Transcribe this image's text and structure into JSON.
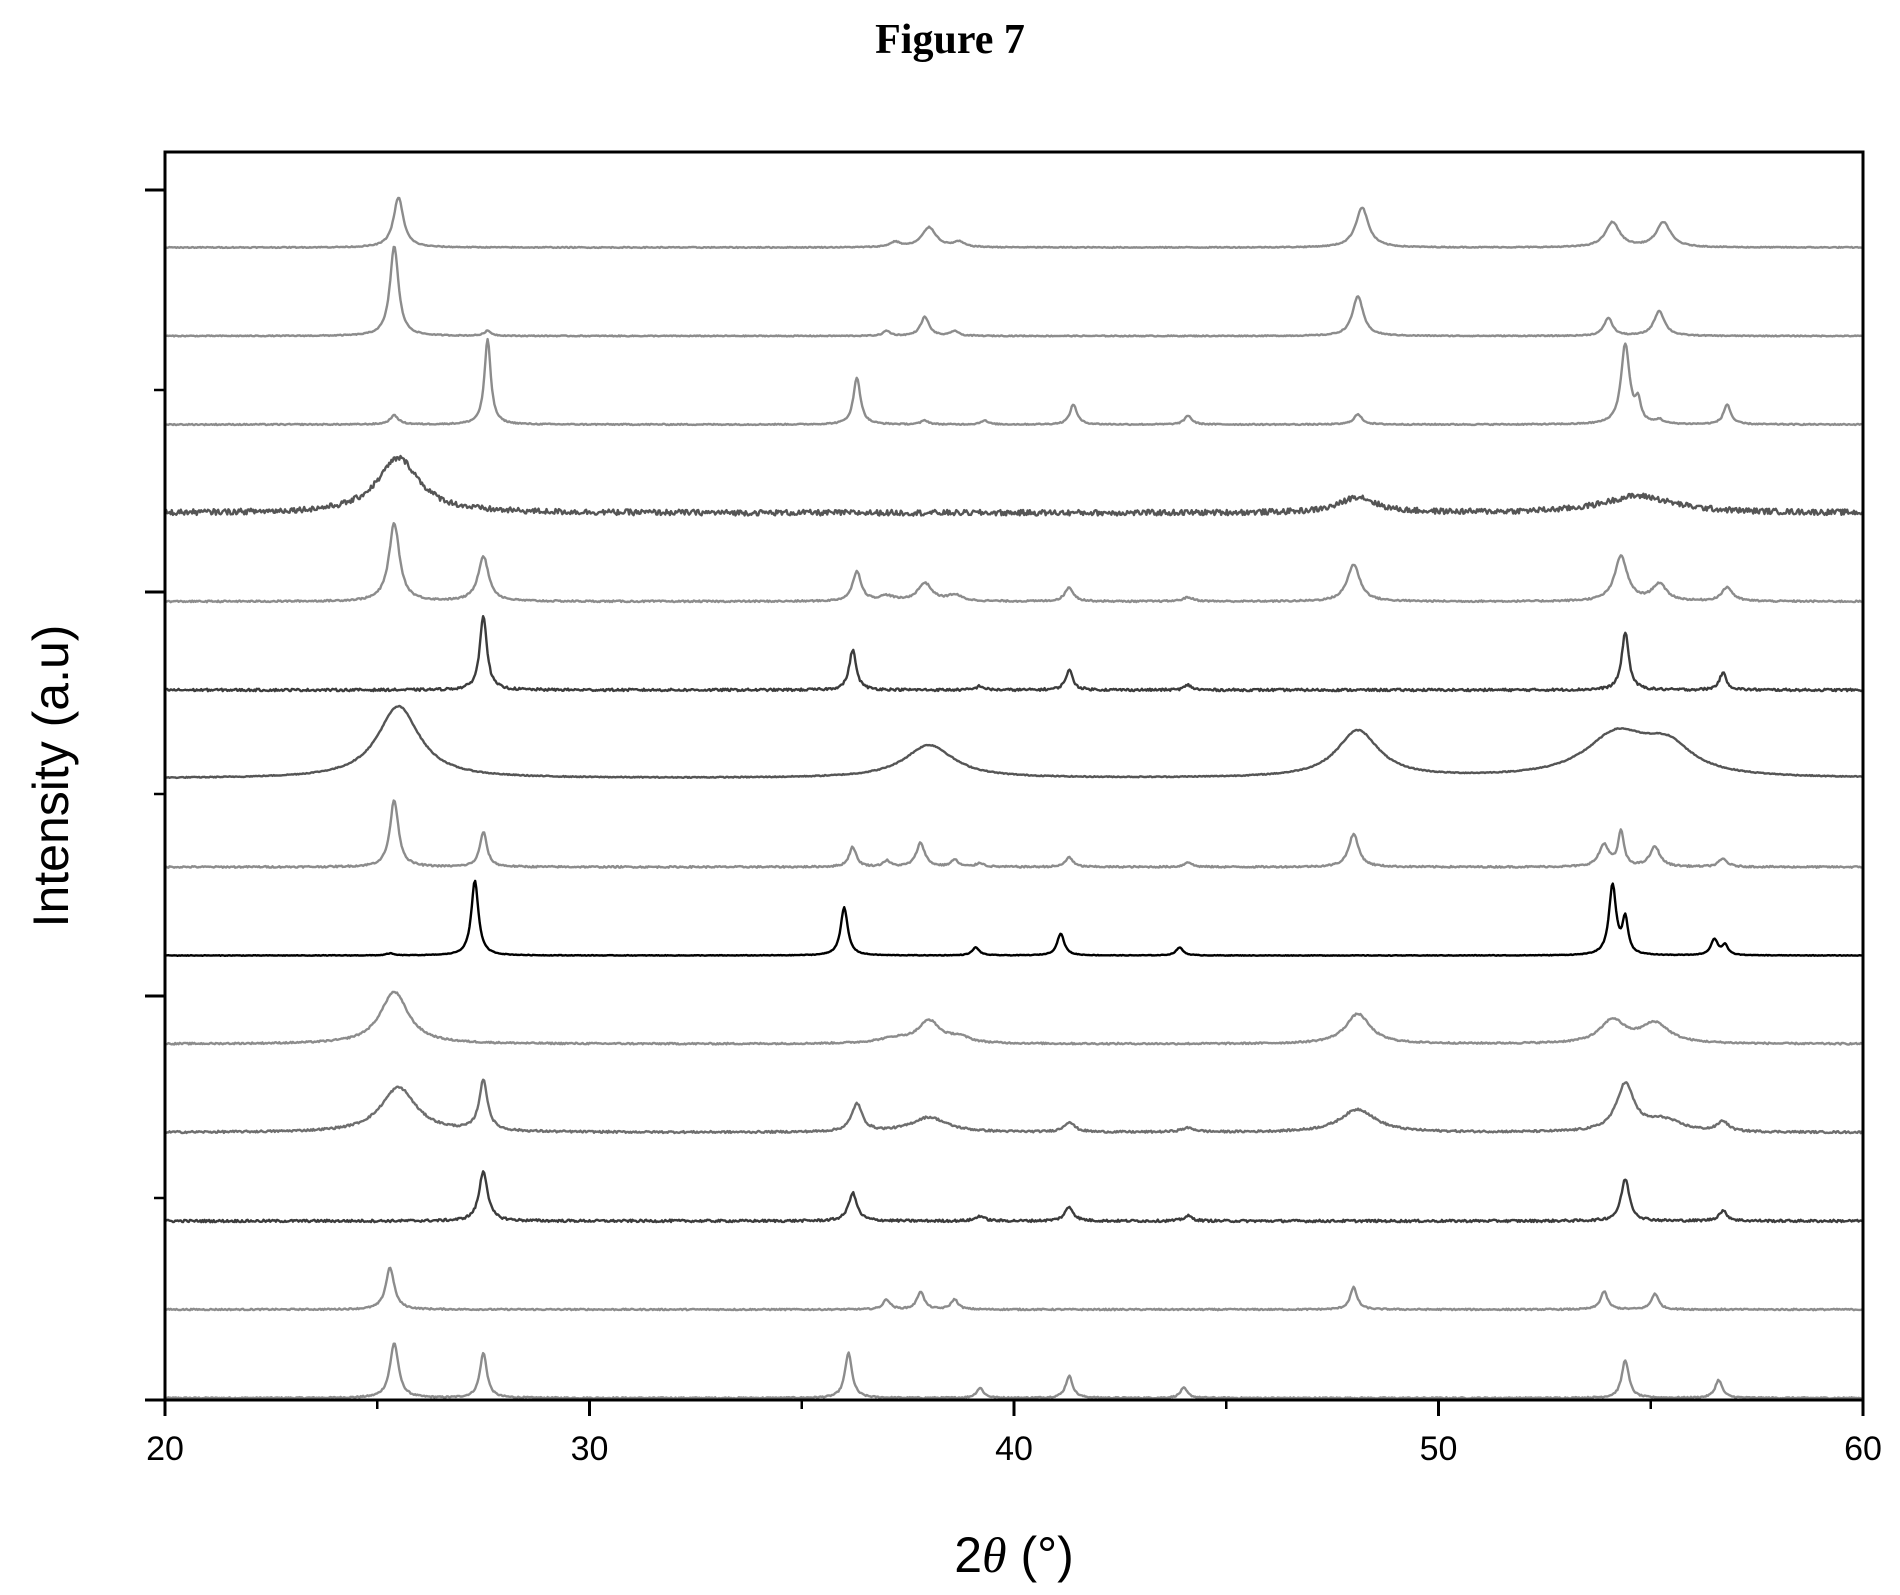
{
  "figure": {
    "title": "Figure 7"
  },
  "chart_data": {
    "type": "line",
    "title": "Figure 7",
    "xlabel": "2θ (°)",
    "xlabel_parts": {
      "prefix": "2",
      "symbol": "θ",
      "suffix": " (°)"
    },
    "ylabel": "Intensity (a.u)",
    "xlim": [
      20,
      60
    ],
    "x_ticks": [
      20,
      30,
      40,
      50,
      60
    ],
    "y_tick_labels": false,
    "grid": false,
    "legend": "none",
    "layout": "stacked-offset",
    "series": [
      {
        "color": "#8c8c8c",
        "baseline": 0,
        "noise": 0.7,
        "peaks": [
          [
            25.4,
            0.55,
            0.12
          ],
          [
            27.5,
            0.45,
            0.1
          ],
          [
            36.1,
            0.45,
            0.1
          ],
          [
            39.2,
            0.1,
            0.1
          ],
          [
            41.3,
            0.22,
            0.1
          ],
          [
            44.0,
            0.1,
            0.1
          ],
          [
            54.4,
            0.38,
            0.1
          ],
          [
            56.6,
            0.18,
            0.1
          ]
        ]
      },
      {
        "color": "#8c8c8c",
        "baseline": 1,
        "noise": 0.7,
        "peaks": [
          [
            25.3,
            0.42,
            0.12
          ],
          [
            37.0,
            0.1,
            0.1
          ],
          [
            37.8,
            0.18,
            0.1
          ],
          [
            38.6,
            0.1,
            0.1
          ],
          [
            48.0,
            0.22,
            0.1
          ],
          [
            53.9,
            0.18,
            0.1
          ],
          [
            55.1,
            0.16,
            0.1
          ]
        ]
      },
      {
        "color": "#3c3c3c",
        "baseline": 2,
        "noise": 1.2,
        "peaks": [
          [
            27.5,
            0.5,
            0.12
          ],
          [
            36.2,
            0.28,
            0.12
          ],
          [
            39.2,
            0.05,
            0.12
          ],
          [
            41.3,
            0.14,
            0.12
          ],
          [
            44.1,
            0.05,
            0.12
          ],
          [
            54.4,
            0.42,
            0.12
          ],
          [
            56.7,
            0.1,
            0.12
          ]
        ]
      },
      {
        "color": "#6e6e6e",
        "baseline": 3,
        "noise": 1.0,
        "peaks": [
          [
            25.5,
            0.45,
            0.5
          ],
          [
            27.5,
            0.5,
            0.12
          ],
          [
            36.3,
            0.28,
            0.15
          ],
          [
            38.0,
            0.15,
            0.5
          ],
          [
            41.3,
            0.1,
            0.15
          ],
          [
            44.1,
            0.04,
            0.2
          ],
          [
            48.1,
            0.23,
            0.5
          ],
          [
            54.4,
            0.47,
            0.25
          ],
          [
            55.3,
            0.12,
            0.5
          ],
          [
            56.7,
            0.1,
            0.15
          ]
        ]
      },
      {
        "color": "#8c8c8c",
        "baseline": 4,
        "noise": 0.8,
        "peaks": [
          [
            25.4,
            0.52,
            0.4
          ],
          [
            37.2,
            0.05,
            0.5
          ],
          [
            38.0,
            0.22,
            0.3
          ],
          [
            38.7,
            0.06,
            0.3
          ],
          [
            48.1,
            0.3,
            0.35
          ],
          [
            54.1,
            0.23,
            0.35
          ],
          [
            55.1,
            0.2,
            0.4
          ]
        ]
      },
      {
        "color": "#000000",
        "baseline": 5,
        "noise": 0.3,
        "peaks": [
          [
            25.3,
            0.02,
            0.1
          ],
          [
            27.3,
            0.75,
            0.1
          ],
          [
            36.0,
            0.48,
            0.1
          ],
          [
            39.1,
            0.08,
            0.1
          ],
          [
            41.1,
            0.22,
            0.1
          ],
          [
            43.9,
            0.08,
            0.1
          ],
          [
            54.1,
            0.7,
            0.1
          ],
          [
            54.4,
            0.35,
            0.08
          ],
          [
            56.5,
            0.16,
            0.1
          ],
          [
            56.75,
            0.1,
            0.08
          ]
        ]
      },
      {
        "color": "#8c8c8c",
        "baseline": 6,
        "noise": 0.8,
        "peaks": [
          [
            25.4,
            0.67,
            0.12
          ],
          [
            27.5,
            0.35,
            0.1
          ],
          [
            36.2,
            0.2,
            0.1
          ],
          [
            37.0,
            0.06,
            0.1
          ],
          [
            37.8,
            0.24,
            0.12
          ],
          [
            38.6,
            0.07,
            0.1
          ],
          [
            39.2,
            0.04,
            0.1
          ],
          [
            41.3,
            0.1,
            0.1
          ],
          [
            44.1,
            0.05,
            0.1
          ],
          [
            48.0,
            0.33,
            0.14
          ],
          [
            53.9,
            0.22,
            0.14
          ],
          [
            54.3,
            0.35,
            0.08
          ],
          [
            55.1,
            0.2,
            0.14
          ],
          [
            56.7,
            0.08,
            0.12
          ]
        ]
      },
      {
        "color": "#555555",
        "baseline": 7,
        "noise": 0.5,
        "peaks": [
          [
            25.5,
            0.72,
            0.6
          ],
          [
            38.0,
            0.33,
            0.7
          ],
          [
            48.1,
            0.47,
            0.6
          ],
          [
            54.2,
            0.42,
            0.9
          ],
          [
            55.4,
            0.28,
            0.7
          ]
        ]
      },
      {
        "color": "#3c3c3c",
        "baseline": 8,
        "noise": 1.2,
        "peaks": [
          [
            27.5,
            0.75,
            0.1
          ],
          [
            36.2,
            0.4,
            0.1
          ],
          [
            39.2,
            0.04,
            0.1
          ],
          [
            41.3,
            0.2,
            0.1
          ],
          [
            44.1,
            0.05,
            0.1
          ],
          [
            54.4,
            0.58,
            0.1
          ],
          [
            56.7,
            0.17,
            0.1
          ]
        ]
      },
      {
        "color": "#8c8c8c",
        "baseline": 9,
        "noise": 0.8,
        "peaks": [
          [
            25.4,
            0.78,
            0.15
          ],
          [
            27.5,
            0.45,
            0.15
          ],
          [
            36.3,
            0.3,
            0.12
          ],
          [
            37.0,
            0.05,
            0.2
          ],
          [
            37.9,
            0.18,
            0.2
          ],
          [
            38.6,
            0.06,
            0.2
          ],
          [
            41.3,
            0.14,
            0.12
          ],
          [
            44.1,
            0.04,
            0.15
          ],
          [
            48.0,
            0.37,
            0.18
          ],
          [
            54.3,
            0.45,
            0.18
          ],
          [
            55.2,
            0.17,
            0.2
          ],
          [
            56.8,
            0.14,
            0.15
          ]
        ]
      },
      {
        "color": "#555555",
        "baseline": 10,
        "noise": 2.8,
        "peaks": [
          [
            25.5,
            0.55,
            0.6
          ],
          [
            48.1,
            0.16,
            0.5
          ],
          [
            54.7,
            0.17,
            1.0
          ]
        ]
      },
      {
        "color": "#8c8c8c",
        "baseline": 11,
        "noise": 0.6,
        "peaks": [
          [
            25.4,
            0.09,
            0.12
          ],
          [
            27.6,
            0.85,
            0.09
          ],
          [
            36.3,
            0.47,
            0.1
          ],
          [
            37.9,
            0.04,
            0.1
          ],
          [
            39.3,
            0.04,
            0.1
          ],
          [
            41.4,
            0.2,
            0.1
          ],
          [
            44.1,
            0.09,
            0.1
          ],
          [
            48.1,
            0.1,
            0.12
          ],
          [
            54.4,
            0.8,
            0.12
          ],
          [
            54.7,
            0.2,
            0.08
          ],
          [
            55.2,
            0.04,
            0.1
          ],
          [
            56.8,
            0.2,
            0.1
          ]
        ]
      },
      {
        "color": "#8c8c8c",
        "baseline": 12,
        "noise": 0.5,
        "peaks": [
          [
            25.4,
            0.9,
            0.12
          ],
          [
            27.6,
            0.05,
            0.1
          ],
          [
            37.0,
            0.05,
            0.1
          ],
          [
            37.9,
            0.19,
            0.12
          ],
          [
            38.6,
            0.05,
            0.1
          ],
          [
            48.1,
            0.4,
            0.15
          ],
          [
            54.0,
            0.18,
            0.12
          ],
          [
            55.2,
            0.25,
            0.15
          ]
        ]
      },
      {
        "color": "#8c8c8c",
        "baseline": 13,
        "noise": 0.5,
        "peaks": [
          [
            25.5,
            0.5,
            0.14
          ],
          [
            37.2,
            0.05,
            0.15
          ],
          [
            38.0,
            0.2,
            0.2
          ],
          [
            38.7,
            0.05,
            0.15
          ],
          [
            48.2,
            0.4,
            0.18
          ],
          [
            54.1,
            0.25,
            0.2
          ],
          [
            55.3,
            0.25,
            0.2
          ]
        ]
      }
    ]
  }
}
